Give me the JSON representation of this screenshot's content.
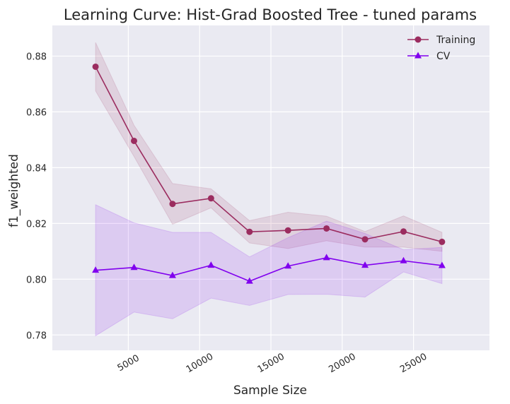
{
  "chart_data": {
    "type": "line",
    "title": "Learning Curve: Hist-Grad Boosted Tree - tuned params",
    "xlabel": "Sample Size",
    "ylabel": "f1_weighted",
    "xlim": [
      -330,
      30330
    ],
    "ylim": [
      0.7745,
      0.891
    ],
    "x_ticks": [
      5000,
      10000,
      15000,
      20000,
      25000
    ],
    "y_ticks": [
      0.78,
      0.8,
      0.82,
      0.84,
      0.86,
      0.88
    ],
    "x_tick_labels": [
      "5000",
      "10000",
      "15000",
      "20000",
      "25000"
    ],
    "y_tick_labels": [
      "0.78",
      "0.80",
      "0.82",
      "0.84",
      "0.86",
      "0.88"
    ],
    "grid": true,
    "legend_position": "top-right",
    "x": [
      2700,
      5400,
      8100,
      10800,
      13500,
      16200,
      18900,
      21600,
      24300,
      27000
    ],
    "series": [
      {
        "name": "Training",
        "color": "#9b2c5f",
        "marker": "circle",
        "values": [
          0.8762,
          0.8496,
          0.827,
          0.829,
          0.817,
          0.8175,
          0.8182,
          0.8143,
          0.8171,
          0.8134
        ],
        "lower": [
          0.8675,
          0.844,
          0.8197,
          0.8256,
          0.813,
          0.811,
          0.8138,
          0.8115,
          0.8115,
          0.81
        ],
        "upper": [
          0.8849,
          0.8552,
          0.8343,
          0.8324,
          0.821,
          0.824,
          0.8226,
          0.8171,
          0.8227,
          0.8168
        ]
      },
      {
        "name": "CV",
        "color": "#8000ee",
        "marker": "triangle",
        "values": [
          0.8032,
          0.8042,
          0.8013,
          0.805,
          0.7993,
          0.8047,
          0.8077,
          0.805,
          0.8066,
          0.8049
        ],
        "lower": [
          0.7797,
          0.7882,
          0.7858,
          0.7932,
          0.7906,
          0.7945,
          0.7946,
          0.7936,
          0.8026,
          0.7984
        ],
        "upper": [
          0.8267,
          0.8202,
          0.8168,
          0.8168,
          0.808,
          0.8149,
          0.8208,
          0.8164,
          0.8106,
          0.8114
        ]
      }
    ]
  }
}
